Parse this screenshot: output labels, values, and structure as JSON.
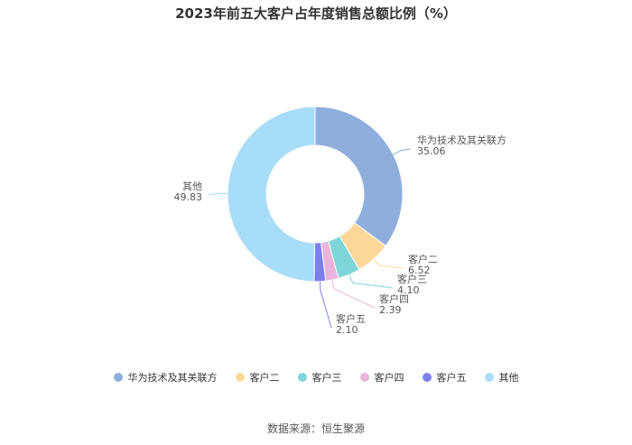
{
  "chart_data": {
    "type": "pie",
    "title": "2023年前五大客户占年度销售总额比例（%）",
    "categories": [
      "华为技术及其关联方",
      "客户二",
      "客户三",
      "客户四",
      "客户五",
      "其他"
    ],
    "values": [
      35.06,
      6.52,
      4.1,
      2.39,
      2.1,
      49.83
    ],
    "value_labels": [
      "35.06",
      "6.52",
      "4.10",
      "2.39",
      "2.10",
      "49.83"
    ],
    "colors": [
      "#8eaedc",
      "#fdd899",
      "#7fd6d8",
      "#e8b4dc",
      "#7b7ff0",
      "#a8ddf8"
    ],
    "donut": true,
    "legend_position": "bottom"
  },
  "source": "数据来源：恒生聚源"
}
